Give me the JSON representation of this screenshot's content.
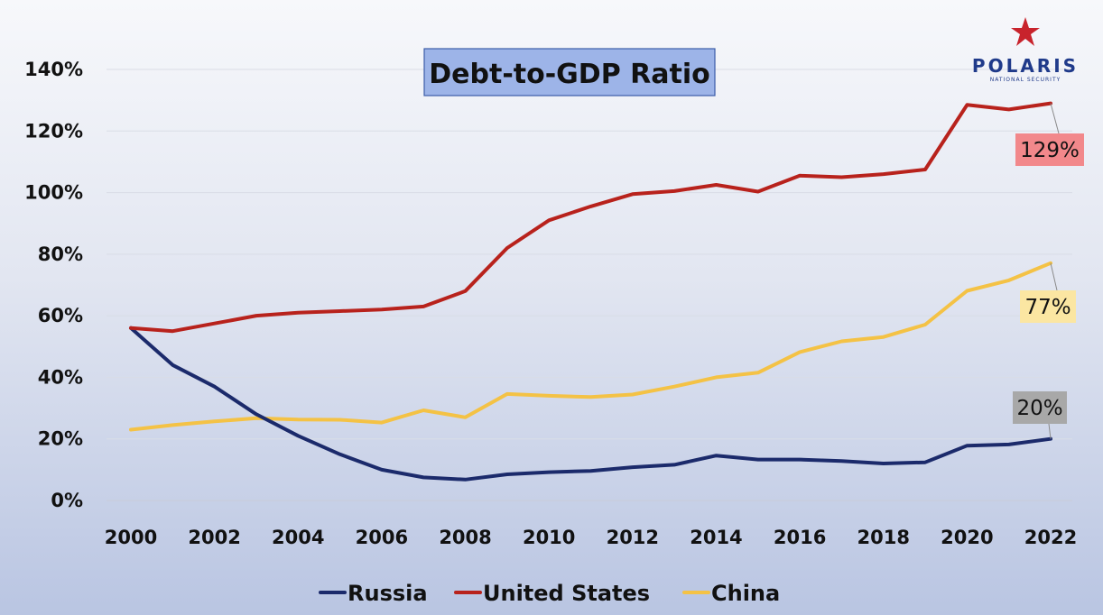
{
  "logo": {
    "name": "POLARIS",
    "subtitle": "NATIONAL SECURITY"
  },
  "chart_data": {
    "type": "line",
    "title": "Debt-to-GDP Ratio",
    "xlabel": "",
    "ylabel": "",
    "x": [
      2000,
      2001,
      2002,
      2003,
      2004,
      2005,
      2006,
      2007,
      2008,
      2009,
      2010,
      2011,
      2012,
      2013,
      2014,
      2015,
      2016,
      2017,
      2018,
      2019,
      2020,
      2021,
      2022
    ],
    "x_ticks": [
      "2000",
      "2002",
      "2004",
      "2006",
      "2008",
      "2010",
      "2012",
      "2014",
      "2016",
      "2018",
      "2020",
      "2022"
    ],
    "y_ticks": [
      "0%",
      "20%",
      "40%",
      "60%",
      "80%",
      "100%",
      "120%",
      "140%"
    ],
    "ylim": [
      0,
      140
    ],
    "grid": "horizontal",
    "legend_position": "bottom",
    "series": [
      {
        "name": "Russia",
        "color": "#1b2a6b",
        "values": [
          56,
          44,
          37,
          28,
          21,
          15,
          10,
          7.5,
          6.8,
          8.5,
          9.2,
          9.6,
          10.8,
          11.6,
          14.6,
          13.3,
          13.3,
          12.8,
          12.0,
          12.4,
          17.8,
          18.2,
          20.0
        ]
      },
      {
        "name": "United States",
        "color": "#b8221c",
        "values": [
          56,
          55,
          57.5,
          60,
          61,
          61.5,
          62,
          63,
          68,
          82,
          91,
          95.5,
          99.5,
          100.5,
          102.5,
          100.3,
          105.5,
          105,
          106,
          107.5,
          128.5,
          127,
          129
        ]
      },
      {
        "name": "China",
        "color": "#f4c245",
        "values": [
          23,
          24.5,
          25.7,
          26.7,
          26.3,
          26.2,
          25.3,
          29.3,
          27,
          34.6,
          34,
          33.6,
          34.4,
          37,
          40,
          41.5,
          48.2,
          51.7,
          53.1,
          57.1,
          68.1,
          71.5,
          77.1
        ]
      }
    ],
    "data_labels": [
      {
        "series": "United States",
        "text": "129%",
        "box_color": "#f2888b"
      },
      {
        "series": "China",
        "text": "77%",
        "box_color": "#fbe6a2"
      },
      {
        "series": "Russia",
        "text": "20%",
        "box_color": "#a8a8a8"
      }
    ]
  }
}
